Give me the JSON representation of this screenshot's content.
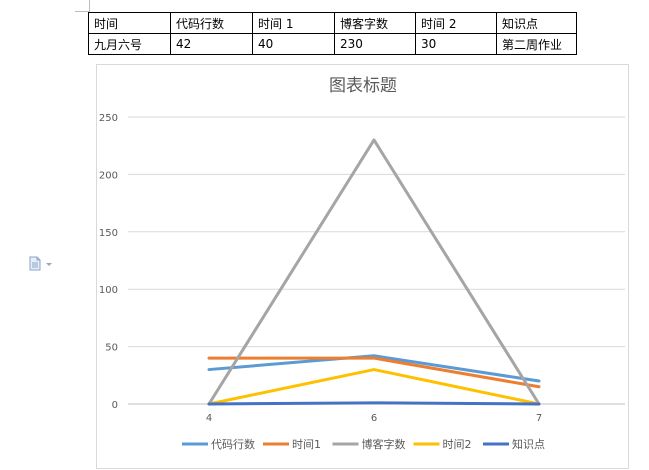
{
  "table": {
    "header": [
      "时间",
      "代码行数",
      "时间 1",
      "博客字数",
      "时间 2",
      "知识点"
    ],
    "row": [
      "九月六号",
      "42",
      "40",
      "230",
      "30",
      "第二周作业"
    ]
  },
  "paste_icon": "paste-options-icon",
  "chart_data": {
    "type": "line",
    "title": "图表标题",
    "x": [
      "4",
      "6",
      "7"
    ],
    "ylim": [
      0,
      250
    ],
    "yticks": [
      0,
      50,
      100,
      150,
      200,
      250
    ],
    "grid": true,
    "legend": "bottom",
    "series": [
      {
        "name": "代码行数",
        "color": "#5B9BD5",
        "values": [
          30,
          42,
          20
        ]
      },
      {
        "name": "时间1",
        "color": "#ED7D31",
        "values": [
          40,
          40,
          15
        ]
      },
      {
        "name": "博客字数",
        "color": "#A5A5A5",
        "values": [
          0,
          230,
          0
        ]
      },
      {
        "name": "时间2",
        "color": "#FFC000",
        "values": [
          0,
          30,
          0
        ]
      },
      {
        "name": "知识点",
        "color": "#4472C4",
        "values": [
          0,
          1,
          0
        ]
      }
    ]
  }
}
